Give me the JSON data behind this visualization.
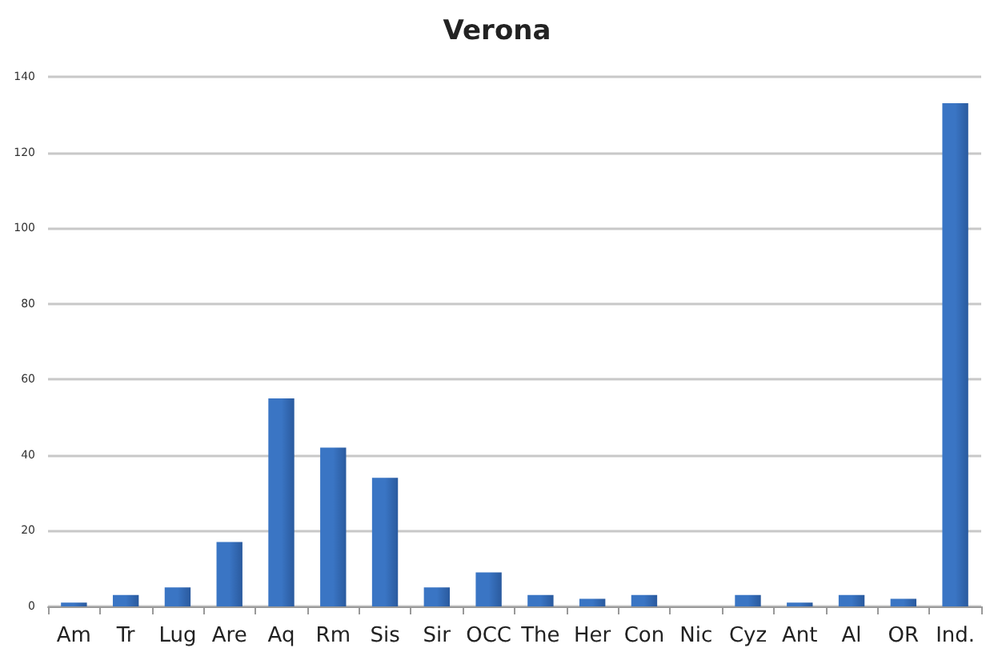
{
  "chart_data": {
    "type": "bar",
    "title": "Verona",
    "categories": [
      "Am",
      "Tr",
      "Lug",
      "Are",
      "Aq",
      "Rm",
      "Sis",
      "Sir",
      "OCC",
      "The",
      "Her",
      "Con",
      "Nic",
      "Cyz",
      "Ant",
      "Al",
      "OR",
      "Ind."
    ],
    "values": [
      1,
      3,
      5,
      17,
      55,
      42,
      34,
      5,
      9,
      3,
      2,
      3,
      0,
      3,
      1,
      3,
      2,
      133
    ],
    "color": "#3a75c4",
    "ylim": [
      0,
      140
    ],
    "yticks": [
      0,
      20,
      40,
      60,
      80,
      100,
      120,
      140
    ],
    "grid": "y"
  }
}
